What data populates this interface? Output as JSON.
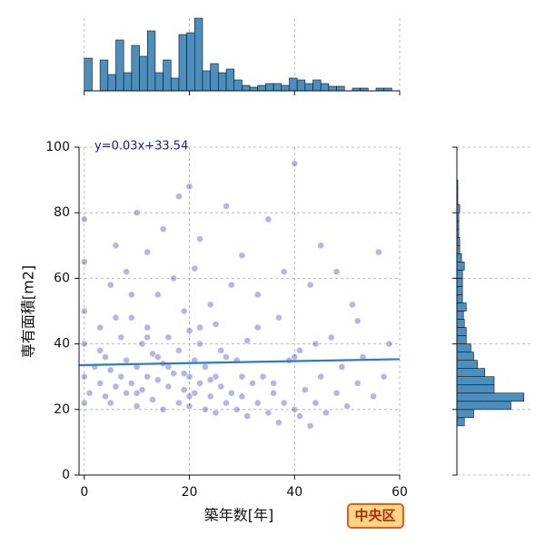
{
  "chart_data": {
    "type": "scatter",
    "x_label": "築年数[年]",
    "y_label": "専有面積[m2]",
    "annotation": "y=0.03x+33.54",
    "badge": "中央区",
    "color": "#2a2ac0",
    "line_color": "#2a7dc6",
    "hist_color": "#4b8fbf",
    "grid": true,
    "xlim": [
      -1,
      60
    ],
    "ylim": [
      0,
      100
    ],
    "xticks": [
      0,
      20,
      40,
      60
    ],
    "yticks": [
      0,
      20,
      40,
      60,
      80,
      100
    ],
    "x": [
      0,
      0,
      0,
      0,
      0,
      0,
      1,
      2,
      3,
      3,
      4,
      4,
      5,
      5,
      5,
      6,
      6,
      7,
      7,
      8,
      8,
      8,
      9,
      9,
      10,
      10,
      10,
      11,
      11,
      12,
      12,
      12,
      13,
      13,
      14,
      14,
      15,
      15,
      15,
      16,
      16,
      17,
      17,
      18,
      18,
      18,
      19,
      19,
      20,
      20,
      20,
      20,
      21,
      21,
      21,
      22,
      22,
      22,
      23,
      23,
      24,
      24,
      25,
      25,
      25,
      26,
      26,
      27,
      27,
      28,
      28,
      29,
      29,
      30,
      30,
      31,
      31,
      32,
      33,
      33,
      34,
      35,
      35,
      36,
      37,
      37,
      38,
      38,
      39,
      40,
      40,
      41,
      41,
      42,
      43,
      43,
      44,
      45,
      45,
      46,
      47,
      48,
      49,
      50,
      51,
      52,
      53,
      55,
      56,
      58,
      3,
      6,
      9,
      12,
      14,
      16,
      19,
      22,
      24,
      27,
      30,
      33,
      36,
      40,
      44,
      48,
      52,
      57,
      10,
      20
    ],
    "y": [
      22,
      30,
      40,
      50,
      65,
      78,
      25,
      33,
      28,
      45,
      24,
      36,
      22,
      32,
      58,
      27,
      70,
      30,
      42,
      25,
      35,
      62,
      28,
      48,
      21,
      33,
      80,
      26,
      40,
      30,
      45,
      68,
      23,
      37,
      29,
      55,
      20,
      34,
      75,
      27,
      42,
      31,
      60,
      22,
      38,
      85,
      26,
      50,
      21,
      30,
      44,
      88,
      25,
      35,
      63,
      28,
      40,
      72,
      20,
      33,
      24,
      52,
      19,
      30,
      46,
      27,
      38,
      22,
      82,
      25,
      58,
      20,
      35,
      24,
      67,
      18,
      41,
      28,
      22,
      55,
      30,
      19,
      78,
      25,
      16,
      48,
      22,
      62,
      35,
      20,
      95,
      18,
      38,
      26,
      15,
      58,
      22,
      30,
      70,
      19,
      42,
      25,
      33,
      21,
      52,
      28,
      36,
      24,
      68,
      40,
      38,
      48,
      55,
      42,
      36,
      33,
      31,
      45,
      29,
      36,
      30,
      45,
      28,
      36,
      40,
      62,
      47,
      30,
      25,
      24
    ],
    "regression": {
      "x": [
        -1,
        60
      ],
      "y": [
        33.51,
        35.34
      ]
    },
    "x_hist": {
      "bins": [
        0,
        1.5,
        3,
        4.5,
        6,
        7.5,
        9,
        10.5,
        12,
        13.5,
        15,
        16.5,
        18,
        19.5,
        21,
        22.5,
        24,
        25.5,
        27,
        28.5,
        30,
        31.5,
        33,
        34.5,
        36,
        37.5,
        39,
        40.5,
        42,
        43.5,
        45,
        46.5,
        48,
        49.5,
        51,
        52.5,
        54,
        55.5,
        57,
        58.5,
        60
      ],
      "counts": [
        36,
        0,
        34,
        18,
        56,
        20,
        50,
        38,
        66,
        20,
        34,
        14,
        62,
        64,
        80,
        22,
        30,
        20,
        24,
        12,
        6,
        4,
        6,
        8,
        8,
        6,
        14,
        12,
        8,
        12,
        8,
        5,
        5,
        0,
        3,
        3,
        0,
        3,
        3,
        0
      ],
      "ylim": [
        0,
        80
      ]
    },
    "y_hist": {
      "bins": [
        15,
        17.5,
        20,
        22.5,
        25,
        27.5,
        30,
        32.5,
        35,
        37.5,
        40,
        42.5,
        45,
        47.5,
        50,
        52.5,
        55,
        57.5,
        60,
        62.5,
        65,
        67.5,
        70,
        72.5,
        75,
        77.5,
        80,
        82.5,
        85,
        87.5,
        90
      ],
      "counts": [
        8,
        18,
        58,
        72,
        40,
        40,
        30,
        22,
        18,
        15,
        10,
        10,
        8,
        7,
        10,
        6,
        6,
        6,
        6,
        8,
        5,
        3,
        3,
        2,
        2,
        2,
        3,
        1,
        1,
        1
      ],
      "xlim": [
        0,
        80
      ]
    }
  }
}
